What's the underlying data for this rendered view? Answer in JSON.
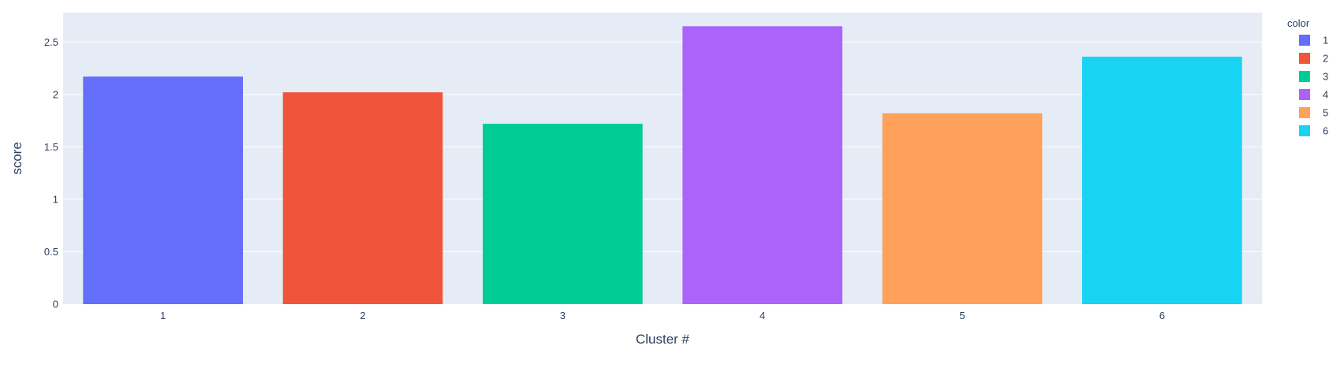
{
  "chart_data": {
    "type": "bar",
    "categories": [
      "1",
      "2",
      "3",
      "4",
      "5",
      "6"
    ],
    "values": [
      2.17,
      2.02,
      1.72,
      2.65,
      1.82,
      2.36
    ],
    "colors": [
      "#636efa",
      "#ef553b",
      "#00cc96",
      "#ab63fa",
      "#ffa15a",
      "#19d3f3"
    ],
    "xlabel": "Cluster #",
    "ylabel": "score",
    "ylim": [
      0,
      2.78
    ],
    "yticks": [
      0,
      0.5,
      1,
      1.5,
      2,
      2.5
    ],
    "ytick_labels": [
      "0",
      "0.5",
      "1",
      "1.5",
      "2",
      "2.5"
    ],
    "grid": true,
    "plot_background": "#e5ecf6",
    "grid_color": "#ffffff",
    "text_color": "#2a3f5f",
    "legend": {
      "title": "color",
      "placement": "right",
      "entries": [
        "1",
        "2",
        "3",
        "4",
        "5",
        "6"
      ]
    }
  }
}
